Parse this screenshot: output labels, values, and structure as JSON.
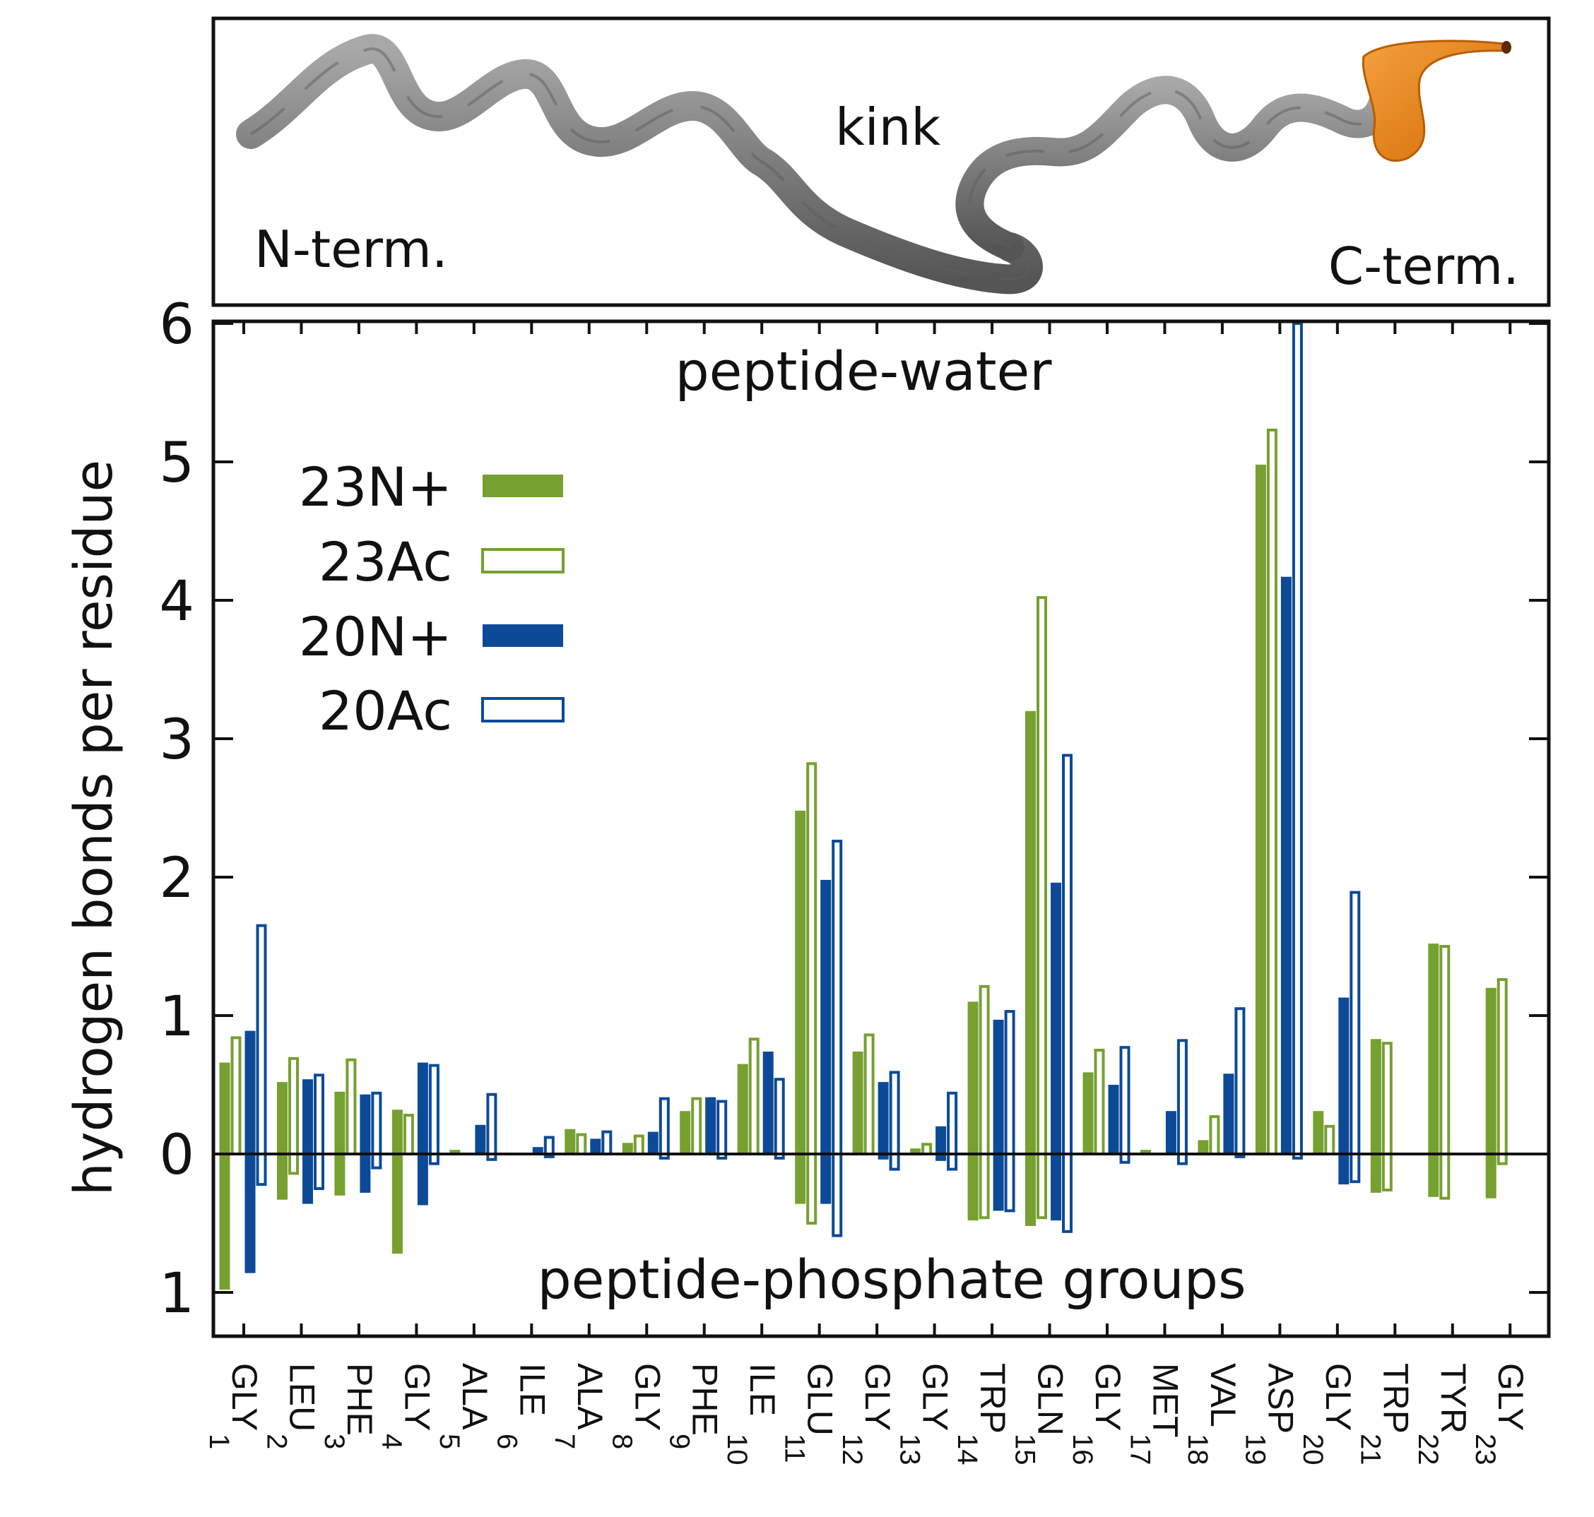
{
  "structure_panel": {
    "n_term_label": "N-term.",
    "kink_label": "kink",
    "c_term_label": "C-term.",
    "colors": {
      "helix": "#8a8a8a",
      "helix_dark": "#5e5e5e",
      "terminal": "#e8820e"
    }
  },
  "chart_data": {
    "type": "bar",
    "ylabel": "hydrogen bonds per residue",
    "annotation_top": "peptide-water",
    "annotation_bottom": "peptide-phosphate groups",
    "ylim": [
      -1.25,
      6.1
    ],
    "yticks": [
      {
        "value": 6,
        "label": "6"
      },
      {
        "value": 5,
        "label": "5"
      },
      {
        "value": 4,
        "label": "4"
      },
      {
        "value": 3,
        "label": "3"
      },
      {
        "value": 2,
        "label": "2"
      },
      {
        "value": 1,
        "label": "1"
      },
      {
        "value": 0,
        "label": "0"
      },
      {
        "value": -1,
        "label": "1"
      }
    ],
    "categories": [
      {
        "name": "GLY",
        "index": "1"
      },
      {
        "name": "LEU",
        "index": "2"
      },
      {
        "name": "PHE",
        "index": "3"
      },
      {
        "name": "GLY",
        "index": "4"
      },
      {
        "name": "ALA",
        "index": "5"
      },
      {
        "name": "ILE",
        "index": "6"
      },
      {
        "name": "ALA",
        "index": "7"
      },
      {
        "name": "GLY",
        "index": "8"
      },
      {
        "name": "PHE",
        "index": "9"
      },
      {
        "name": "ILE",
        "index": "10"
      },
      {
        "name": "GLU",
        "index": "11"
      },
      {
        "name": "GLY",
        "index": "12"
      },
      {
        "name": "GLY",
        "index": "13"
      },
      {
        "name": "TRP",
        "index": "14"
      },
      {
        "name": "GLN",
        "index": "15"
      },
      {
        "name": "GLY",
        "index": "16"
      },
      {
        "name": "MET",
        "index": "17"
      },
      {
        "name": "VAL",
        "index": "18"
      },
      {
        "name": "ASP",
        "index": "19"
      },
      {
        "name": "GLY",
        "index": "20"
      },
      {
        "name": "TRP",
        "index": "21"
      },
      {
        "name": "TYR",
        "index": "22"
      },
      {
        "name": "GLY",
        "index": "23"
      }
    ],
    "legend": {
      "placement": "upper-left"
    },
    "series": [
      {
        "name": "23N+",
        "style": "filled",
        "color": "#76a030",
        "water": [
          0.66,
          0.52,
          0.45,
          0.32,
          0.03,
          0,
          0.18,
          0.08,
          0.31,
          0.65,
          2.48,
          0.74,
          0.04,
          1.1,
          3.2,
          0.59,
          0.03,
          0.1,
          4.98,
          0.31,
          0.83,
          1.52,
          1.2
        ],
        "phosphate": [
          0.98,
          0.33,
          0.3,
          0.72,
          0,
          0,
          0,
          0,
          0,
          0,
          0.36,
          0,
          0,
          0.48,
          0.52,
          0,
          0,
          0,
          0,
          0,
          0.28,
          0.31,
          0.32
        ]
      },
      {
        "name": "23Ac",
        "style": "outline",
        "color": "#76a030",
        "water": [
          0.84,
          0.69,
          0.68,
          0.28,
          0,
          0,
          0.14,
          0.13,
          0.4,
          0.83,
          2.82,
          0.86,
          0.07,
          1.21,
          4.02,
          0.75,
          0,
          0.27,
          5.23,
          0.2,
          0.8,
          1.5,
          1.26
        ],
        "phosphate": [
          0,
          0.14,
          0,
          0,
          0,
          0,
          0,
          0,
          0,
          0,
          0.5,
          0,
          0,
          0.46,
          0.46,
          0,
          0,
          0,
          0,
          0,
          0.26,
          0.32,
          0.07
        ]
      },
      {
        "name": "20N+",
        "style": "filled",
        "color": "#0c4a98",
        "water": [
          0.89,
          0.54,
          0.43,
          0.66,
          0.21,
          0.05,
          0.11,
          0.16,
          0.41,
          0.74,
          1.98,
          0.52,
          0.2,
          0.97,
          1.96,
          0.5,
          0.31,
          0.58,
          4.17,
          1.13,
          null,
          null,
          null
        ],
        "phosphate": [
          0.86,
          0.36,
          0.28,
          0.37,
          0,
          0,
          0,
          0,
          0,
          0,
          0.36,
          0.04,
          0.05,
          0.41,
          0.48,
          0,
          0,
          0,
          0,
          0.22,
          null,
          null,
          null
        ]
      },
      {
        "name": "20Ac",
        "style": "outline",
        "color": "#0c4a98",
        "water": [
          1.65,
          0.57,
          0.44,
          0.64,
          0.43,
          0.12,
          0.16,
          0.4,
          0.38,
          0.54,
          2.26,
          0.59,
          0.44,
          1.03,
          2.88,
          0.77,
          0.82,
          1.05,
          6.0,
          1.89,
          null,
          null,
          null
        ],
        "phosphate": [
          0.22,
          0.25,
          0.1,
          0.07,
          0.04,
          0.02,
          0,
          0.03,
          0.03,
          0.03,
          0.59,
          0.11,
          0.11,
          0.41,
          0.56,
          0.06,
          0.07,
          0.02,
          0.03,
          0.2,
          null,
          null,
          null
        ]
      }
    ]
  }
}
